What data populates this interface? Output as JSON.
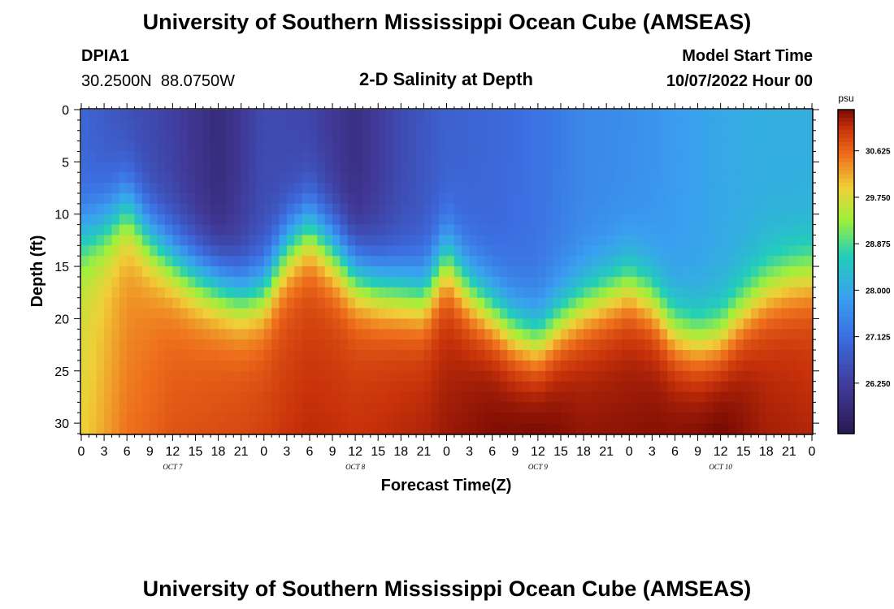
{
  "header": {
    "title": "University of Southern Mississippi Ocean Cube (AMSEAS)",
    "station_id": "DPIA1",
    "station_coords": "30.2500N  88.0750W",
    "plot_title": "2-D Salinity at Depth",
    "model_start_label": "Model Start Time",
    "model_start_value": "10/07/2022 Hour 00"
  },
  "footer": {
    "repeat_title": "University of Southern Mississippi Ocean Cube (AMSEAS)"
  },
  "chart_data": {
    "type": "heatmap",
    "title": "2-D Salinity at Depth",
    "xlabel": "Forecast Time(Z)",
    "ylabel": "Depth (ft)",
    "x_tick_labels": [
      "0",
      "3",
      "6",
      "9",
      "12",
      "15",
      "18",
      "21",
      "0",
      "3",
      "6",
      "9",
      "12",
      "15",
      "18",
      "21",
      "0",
      "3",
      "6",
      "9",
      "12",
      "15",
      "18",
      "21",
      "0",
      "3",
      "6",
      "9",
      "12",
      "15",
      "18",
      "21",
      "0"
    ],
    "x_range_hours": [
      0,
      96
    ],
    "day_labels": [
      {
        "text": "OCT 7",
        "hour": 12
      },
      {
        "text": "OCT 8",
        "hour": 36
      },
      {
        "text": "OCT 9",
        "hour": 60
      },
      {
        "text": "OCT 10",
        "hour": 84
      }
    ],
    "y_range_ft": [
      0,
      31
    ],
    "y_ticks": [
      0,
      5,
      10,
      15,
      20,
      25,
      30
    ],
    "y_tick_labels": [
      "0",
      "5",
      "10",
      "15",
      "20",
      "25",
      "30"
    ],
    "colorbar": {
      "unit": "psu",
      "range": [
        25.3,
        31.4
      ],
      "ticks": [
        26.25,
        27.125,
        28.0,
        28.875,
        29.75,
        30.625
      ],
      "tick_labels": [
        "26.250",
        "27.125",
        "28.000",
        "28.875",
        "29.750",
        "30.625"
      ]
    },
    "colors": {
      "low": "#2a1a52",
      "mid_low": "#3a8ef0",
      "mid": "#22cfb8",
      "mid_high": "#f0cf38",
      "high": "#7a0a04"
    },
    "profiles_note": "Salinity cross-section: fresher (lower psu) water near surface, saltier (higher psu) water at depth; halocline depth oscillates with time.",
    "halocline_depth_ft": {
      "hours": [
        0,
        3,
        6,
        9,
        12,
        15,
        18,
        21,
        24,
        27,
        30,
        33,
        36,
        39,
        42,
        45,
        48,
        51,
        54,
        57,
        60,
        63,
        66,
        69,
        72,
        75,
        78,
        81,
        84,
        87,
        90,
        93,
        96
      ],
      "values": [
        12,
        11,
        9,
        12,
        14,
        15.5,
        16.5,
        17.5,
        17,
        13,
        11,
        13,
        15.5,
        16.5,
        17,
        17.5,
        14,
        17,
        19,
        21,
        22,
        20,
        18.5,
        17.5,
        16.5,
        18,
        21,
        22,
        21.5,
        19,
        17,
        16,
        15.5
      ]
    },
    "surface_salinity_psu": {
      "hours": [
        0,
        6,
        12,
        18,
        24,
        30,
        36,
        42,
        48,
        54,
        60,
        66,
        72,
        78,
        84,
        90,
        96
      ],
      "values": [
        27.0,
        26.6,
        26.3,
        25.8,
        26.5,
        26.4,
        25.9,
        26.5,
        26.9,
        27.0,
        27.2,
        27.5,
        27.6,
        27.8,
        28.0,
        28.1,
        28.1
      ]
    },
    "bottom_salinity_psu": {
      "hours": [
        0,
        6,
        12,
        18,
        24,
        30,
        36,
        42,
        48,
        54,
        60,
        66,
        72,
        78,
        84,
        90,
        96
      ],
      "values": [
        29.6,
        30.2,
        30.5,
        30.6,
        30.7,
        30.8,
        30.8,
        30.9,
        31.0,
        31.2,
        31.3,
        31.1,
        31.1,
        31.2,
        31.3,
        31.0,
        30.9
      ]
    }
  }
}
